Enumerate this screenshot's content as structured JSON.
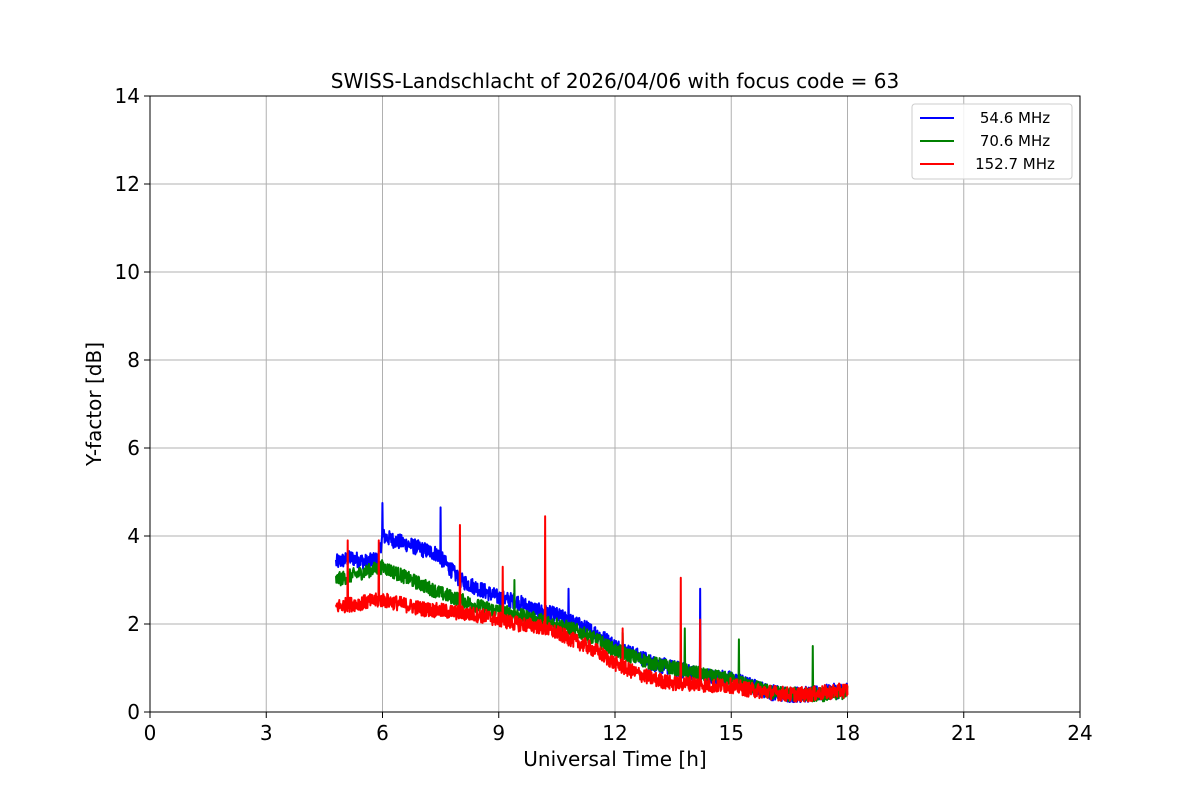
{
  "chart_data": {
    "type": "line",
    "title": "SWISS-Landschlacht of 2026/04/06 with focus code = 63",
    "xlabel": "Universal Time [h]",
    "ylabel": "Y-factor [dB]",
    "xlim": [
      0,
      24
    ],
    "ylim": [
      0,
      14
    ],
    "xticks": [
      0,
      3,
      6,
      9,
      12,
      15,
      18,
      21,
      24
    ],
    "yticks": [
      0,
      2,
      4,
      6,
      8,
      10,
      12,
      14
    ],
    "grid": true,
    "legend_position": "top-right",
    "series": [
      {
        "name": "54.6 MHz",
        "color": "#0000ff",
        "x": [
          4.8,
          5.2,
          5.6,
          5.9,
          6.0,
          6.3,
          6.7,
          7.0,
          7.4,
          7.7,
          8.0,
          8.5,
          9.0,
          9.5,
          10.0,
          10.5,
          11.0,
          11.5,
          12.0,
          12.5,
          13.0,
          13.5,
          14.0,
          14.5,
          15.0,
          15.5,
          16.0,
          16.5,
          17.0,
          17.5,
          18.0
        ],
        "y": [
          3.4,
          3.5,
          3.4,
          3.5,
          4.0,
          3.9,
          3.8,
          3.7,
          3.6,
          3.3,
          3.0,
          2.8,
          2.6,
          2.5,
          2.3,
          2.2,
          2.0,
          1.8,
          1.5,
          1.3,
          1.1,
          1.0,
          0.9,
          0.8,
          0.75,
          0.6,
          0.45,
          0.4,
          0.4,
          0.45,
          0.5
        ],
        "spikes": [
          [
            6.0,
            4.75
          ],
          [
            7.5,
            4.65
          ],
          [
            10.8,
            2.8
          ],
          [
            14.2,
            2.8
          ]
        ],
        "noise": 0.18
      },
      {
        "name": "70.6 MHz",
        "color": "#008000",
        "x": [
          4.8,
          5.2,
          5.6,
          6.0,
          6.5,
          7.0,
          7.5,
          8.0,
          8.5,
          9.0,
          9.5,
          10.0,
          10.5,
          11.0,
          11.5,
          12.0,
          12.5,
          13.0,
          13.5,
          14.0,
          14.5,
          15.0,
          15.5,
          16.0,
          16.5,
          17.0,
          17.5,
          18.0
        ],
        "y": [
          3.0,
          3.1,
          3.2,
          3.3,
          3.1,
          2.9,
          2.7,
          2.55,
          2.4,
          2.3,
          2.2,
          2.1,
          2.0,
          1.85,
          1.65,
          1.4,
          1.25,
          1.1,
          1.0,
          0.9,
          0.8,
          0.75,
          0.6,
          0.45,
          0.4,
          0.4,
          0.4,
          0.45
        ],
        "spikes": [
          [
            9.4,
            3.0
          ],
          [
            12.2,
            1.8
          ],
          [
            13.8,
            1.9
          ],
          [
            15.2,
            1.65
          ],
          [
            17.1,
            1.5
          ]
        ],
        "noise": 0.16
      },
      {
        "name": "152.7 MHz",
        "color": "#ff0000",
        "x": [
          4.8,
          5.2,
          5.6,
          6.0,
          6.5,
          7.0,
          7.5,
          8.0,
          8.5,
          9.0,
          9.5,
          10.0,
          10.5,
          11.0,
          11.5,
          12.0,
          12.5,
          13.0,
          13.5,
          14.0,
          14.5,
          15.0,
          15.5,
          16.0,
          16.5,
          17.0,
          17.5,
          18.0
        ],
        "y": [
          2.4,
          2.45,
          2.5,
          2.55,
          2.45,
          2.35,
          2.3,
          2.25,
          2.2,
          2.1,
          2.0,
          1.95,
          1.8,
          1.6,
          1.4,
          1.1,
          0.9,
          0.75,
          0.65,
          0.65,
          0.6,
          0.6,
          0.5,
          0.45,
          0.4,
          0.4,
          0.45,
          0.5
        ],
        "spikes": [
          [
            5.1,
            3.9
          ],
          [
            5.9,
            3.9
          ],
          [
            8.0,
            4.25
          ],
          [
            9.1,
            3.3
          ],
          [
            10.2,
            4.45
          ],
          [
            12.2,
            1.9
          ],
          [
            13.7,
            3.05
          ],
          [
            14.2,
            2.1
          ]
        ],
        "noise": 0.17
      }
    ]
  }
}
